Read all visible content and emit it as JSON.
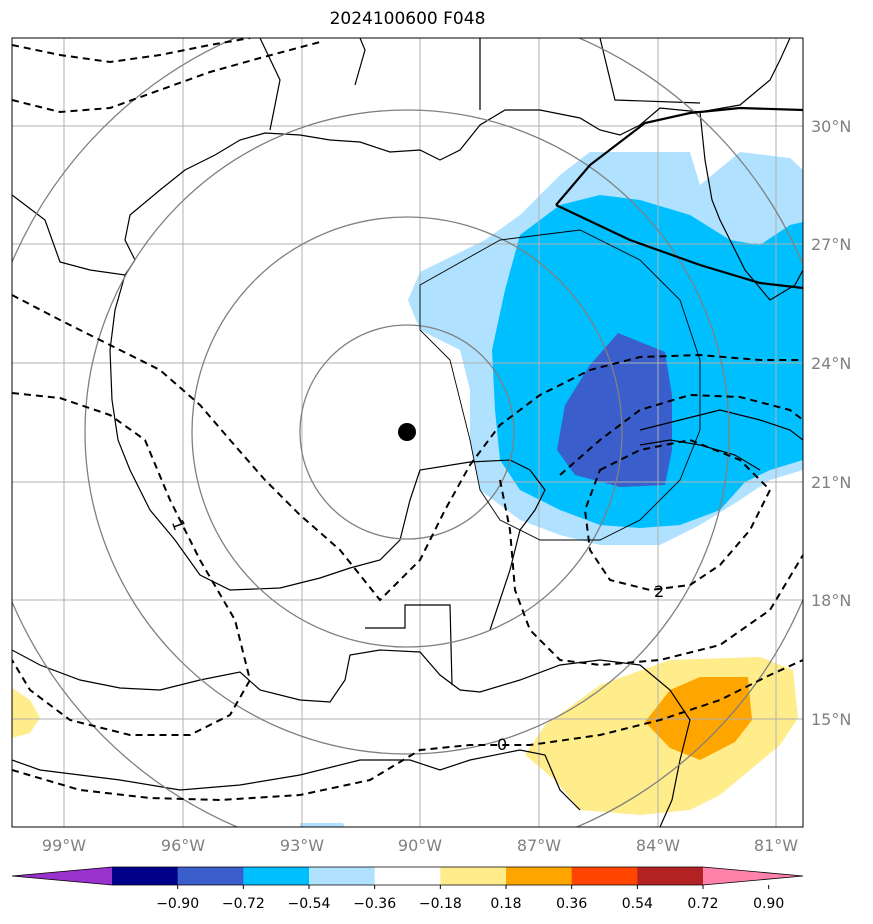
{
  "title": "2024100600 F048",
  "map": {
    "lon_labels": [
      "99°W",
      "96°W",
      "93°W",
      "90°W",
      "87°W",
      "84°W",
      "81°W"
    ],
    "lat_labels": [
      "30°N",
      "27°N",
      "24°N",
      "21°N",
      "18°N",
      "15°N"
    ],
    "contour_labels": [
      "1",
      "2",
      "0"
    ],
    "colors": {
      "land_outline": "#000000",
      "grid": "#b0b0b0",
      "range_rings": "#808080",
      "center_marker": "#000000"
    }
  },
  "colorbar": {
    "ticks": [
      "−0.90",
      "−0.72",
      "−0.54",
      "−0.36",
      "−0.18",
      "0.18",
      "0.36",
      "0.54",
      "0.72",
      "0.90"
    ],
    "colors": [
      "#9932cc",
      "#00008b",
      "#3a5fcd",
      "#00bfff",
      "#b0e2ff",
      "#ffffff",
      "#ffec8b",
      "#ffa500",
      "#ff4500",
      "#b22222",
      "#ff82ab"
    ]
  }
}
